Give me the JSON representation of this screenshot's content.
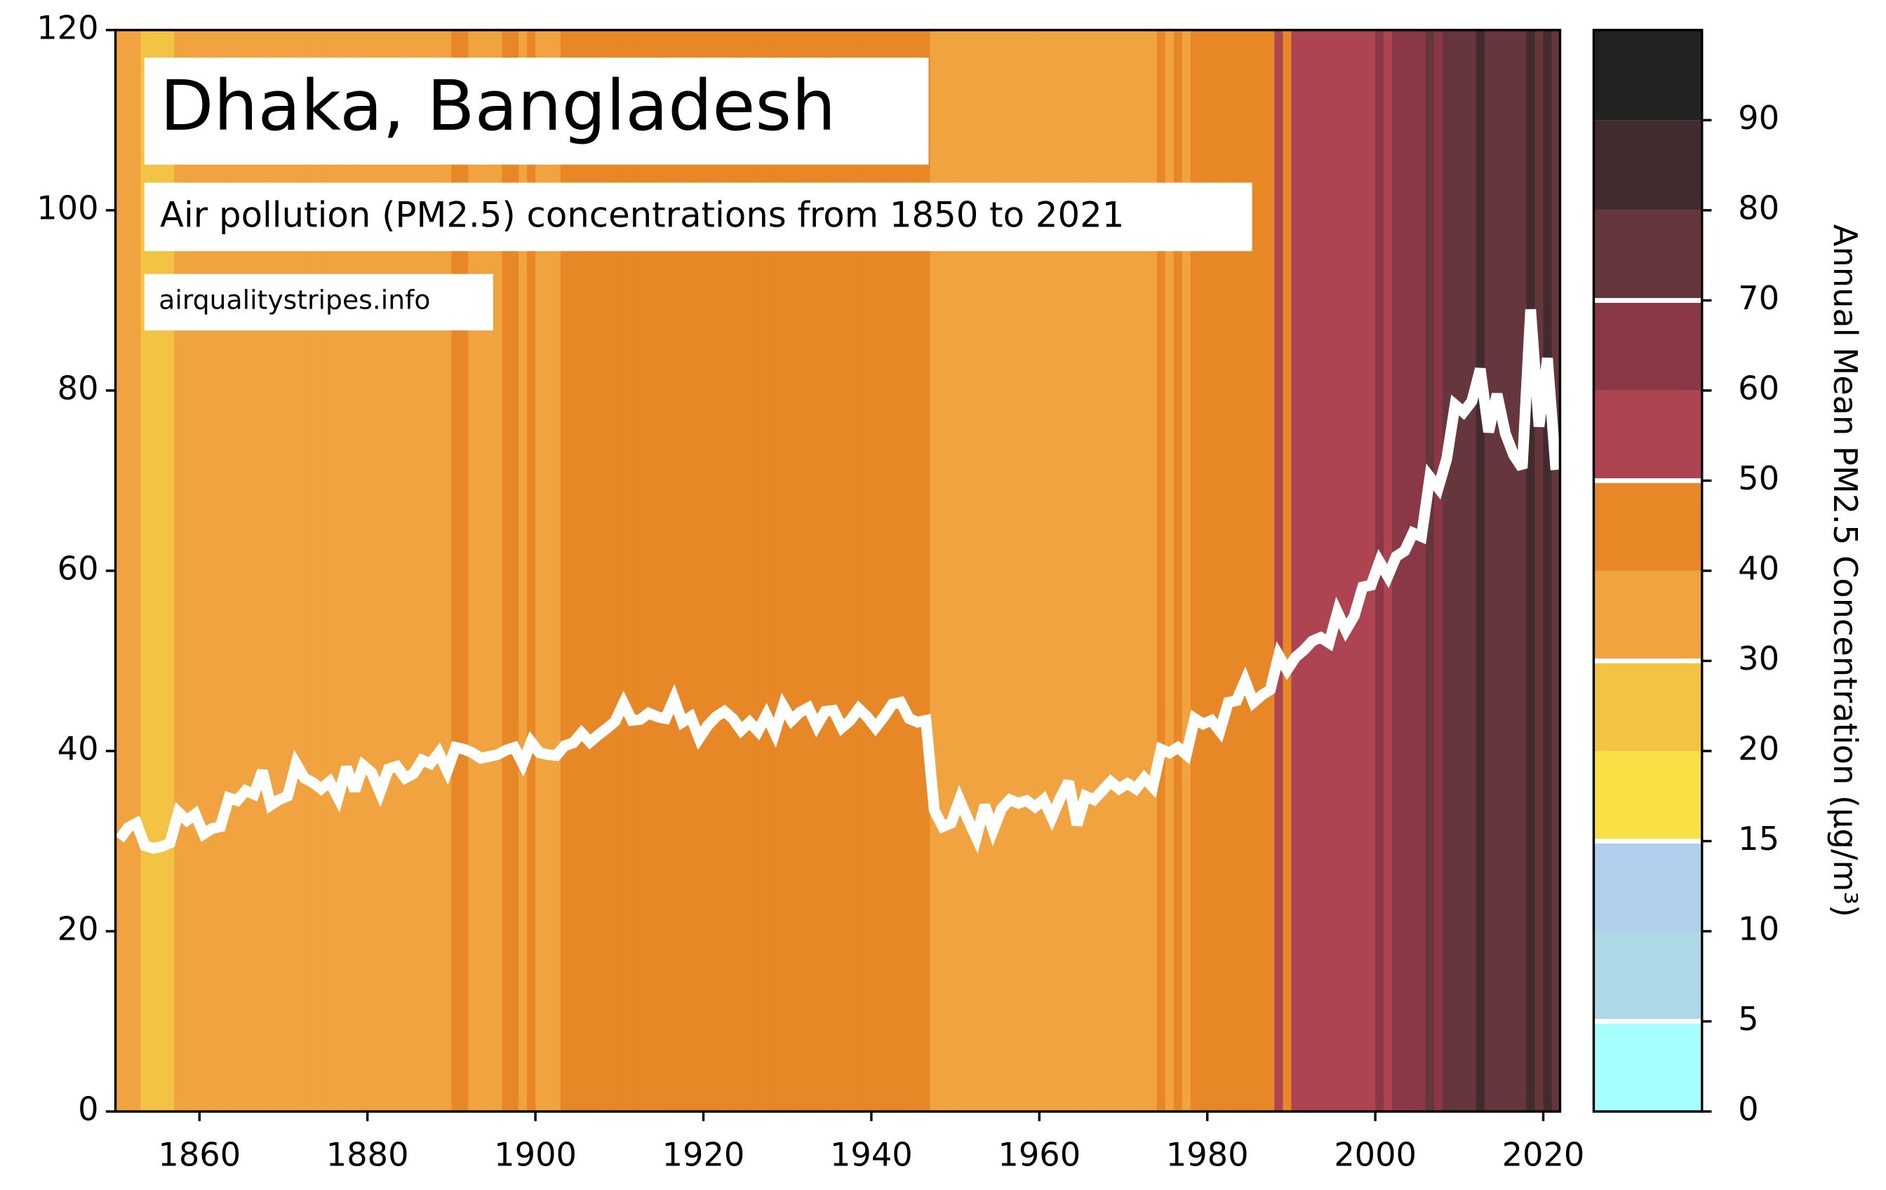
{
  "chart_data": {
    "type": "line",
    "title": "Dhaka, Bangladesh",
    "subtitle": "Air pollution (PM2.5) concentrations from 1850 to 2021",
    "source": "airqualitystripes.info",
    "x": [
      1850,
      1851,
      1852,
      1853,
      1854,
      1855,
      1856,
      1857,
      1858,
      1859,
      1860,
      1861,
      1862,
      1863,
      1864,
      1865,
      1866,
      1867,
      1868,
      1869,
      1870,
      1871,
      1872,
      1873,
      1874,
      1875,
      1876,
      1877,
      1878,
      1879,
      1880,
      1881,
      1882,
      1883,
      1884,
      1885,
      1886,
      1887,
      1888,
      1889,
      1890,
      1891,
      1892,
      1893,
      1894,
      1895,
      1896,
      1897,
      1898,
      1899,
      1900,
      1901,
      1902,
      1903,
      1904,
      1905,
      1906,
      1907,
      1908,
      1909,
      1910,
      1911,
      1912,
      1913,
      1914,
      1915,
      1916,
      1917,
      1918,
      1919,
      1920,
      1921,
      1922,
      1923,
      1924,
      1925,
      1926,
      1927,
      1928,
      1929,
      1930,
      1931,
      1932,
      1933,
      1934,
      1935,
      1936,
      1937,
      1938,
      1939,
      1940,
      1941,
      1942,
      1943,
      1944,
      1945,
      1946,
      1947,
      1948,
      1949,
      1950,
      1951,
      1952,
      1953,
      1954,
      1955,
      1956,
      1957,
      1958,
      1959,
      1960,
      1961,
      1962,
      1963,
      1964,
      1965,
      1966,
      1967,
      1968,
      1969,
      1970,
      1971,
      1972,
      1973,
      1974,
      1975,
      1976,
      1977,
      1978,
      1979,
      1980,
      1981,
      1982,
      1983,
      1984,
      1985,
      1986,
      1987,
      1988,
      1989,
      1990,
      1991,
      1992,
      1993,
      1994,
      1995,
      1996,
      1997,
      1998,
      1999,
      2000,
      2001,
      2002,
      2003,
      2004,
      2005,
      2006,
      2007,
      2008,
      2009,
      2010,
      2011,
      2012,
      2013,
      2014,
      2015,
      2016,
      2017,
      2018,
      2019,
      2020,
      2021
    ],
    "values": [
      30.2,
      31.5,
      32.0,
      29.5,
      29.2,
      29.4,
      29.8,
      33.2,
      32.3,
      33.0,
      30.8,
      31.4,
      31.6,
      34.8,
      34.5,
      35.6,
      35.2,
      37.8,
      34.0,
      34.6,
      35.0,
      38.6,
      37.0,
      36.5,
      35.8,
      36.6,
      34.8,
      38.2,
      35.6,
      38.4,
      37.6,
      35.4,
      38.0,
      38.3,
      37.0,
      37.5,
      39.0,
      38.6,
      39.8,
      37.8,
      40.4,
      40.2,
      39.8,
      39.2,
      39.4,
      39.6,
      40.1,
      40.4,
      38.6,
      41.0,
      39.8,
      39.6,
      39.5,
      40.6,
      40.9,
      42.0,
      41.0,
      41.8,
      42.5,
      43.3,
      45.3,
      43.4,
      43.5,
      44.2,
      43.8,
      43.6,
      45.8,
      43.2,
      43.8,
      41.4,
      42.8,
      43.8,
      44.4,
      43.6,
      42.3,
      43.2,
      42.2,
      44.0,
      42.0,
      45.0,
      43.4,
      44.3,
      44.8,
      42.8,
      44.4,
      44.5,
      42.6,
      43.4,
      44.7,
      43.8,
      42.6,
      43.8,
      45.2,
      45.4,
      43.6,
      43.2,
      43.4,
      33.4,
      31.6,
      32.0,
      34.6,
      32.4,
      30.4,
      34.0,
      31.2,
      33.6,
      34.6,
      34.2,
      34.5,
      33.8,
      34.6,
      32.6,
      34.8,
      36.6,
      31.8,
      35.0,
      34.6,
      35.6,
      36.6,
      35.8,
      36.4,
      35.8,
      37.0,
      36.0,
      40.2,
      39.8,
      40.4,
      39.6,
      43.6,
      43.0,
      43.4,
      42.2,
      45.4,
      45.6,
      47.8,
      45.4,
      46.2,
      46.8,
      50.6,
      49.0,
      50.4,
      51.2,
      52.2,
      52.6,
      52.0,
      55.4,
      53.4,
      55.0,
      58.2,
      58.4,
      61.0,
      59.4,
      61.6,
      62.2,
      64.2,
      63.8,
      70.4,
      69.2,
      72.4,
      78.4,
      77.6,
      78.8,
      82.4,
      75.4,
      79.6,
      75.2,
      72.8,
      71.4,
      89.0,
      76.0,
      83.6,
      71.2
    ],
    "line_color": "#ffffff",
    "xlim": [
      1850,
      2022
    ],
    "xticks": [
      1860,
      1880,
      1900,
      1920,
      1940,
      1960,
      1980,
      2000,
      2020
    ],
    "ylim": [
      0,
      120
    ],
    "yticks": [
      0,
      20,
      40,
      60,
      80,
      100,
      120
    ],
    "colorbar_label": "Annual Mean PM2.5 Concentration (µg/m³)",
    "colorbar_ticks": [
      0,
      5,
      10,
      15,
      20,
      30,
      40,
      50,
      60,
      70,
      80,
      90
    ],
    "colorbar_colors": [
      "#a6ffff",
      "#add8e6",
      "#b0cfec",
      "#f8e045",
      "#f3c444",
      "#f0a33e",
      "#e88726",
      "#ad4452",
      "#8a3846",
      "#65363b",
      "#412b2f",
      "#222222"
    ],
    "colorbar_lines": [
      5,
      15,
      30,
      50,
      70
    ]
  }
}
